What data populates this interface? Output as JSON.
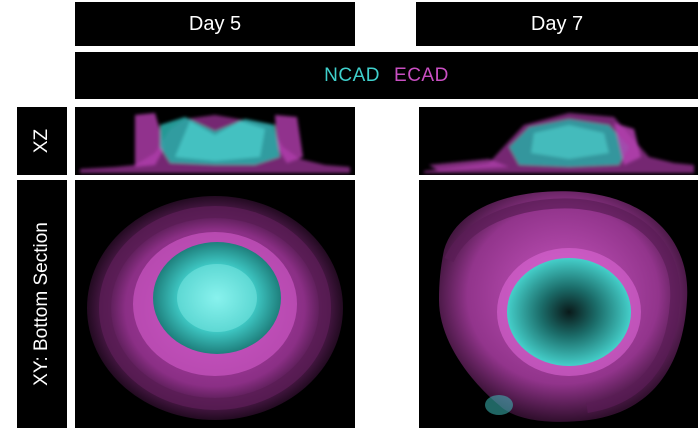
{
  "columns": {
    "day5": "Day 5",
    "day7": "Day 7"
  },
  "legend": {
    "ncad": "NCAD",
    "ecad": "ECAD",
    "ncad_color": "#3fd0cc",
    "ecad_color": "#c94fc2"
  },
  "rows": {
    "xz": "XZ",
    "xy": "XY: Bottom Section"
  }
}
